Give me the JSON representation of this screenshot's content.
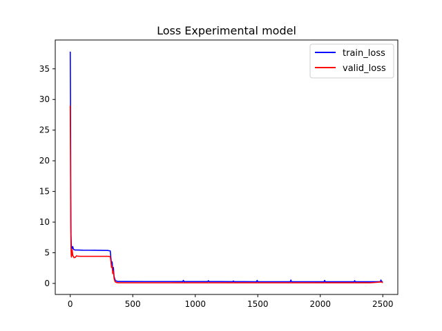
{
  "chart_data": {
    "type": "line",
    "title": "Loss Experimental model",
    "xlabel": "",
    "ylabel": "",
    "xlim": [
      -120,
      2620
    ],
    "ylim": [
      -1.8,
      39.7
    ],
    "x_ticks": [
      0,
      500,
      1000,
      1500,
      2000,
      2500
    ],
    "x_tick_labels": [
      "0",
      "500",
      "1000",
      "1500",
      "2000",
      "2500"
    ],
    "y_ticks": [
      0,
      5,
      10,
      15,
      20,
      25,
      30,
      35
    ],
    "y_tick_labels": [
      "0",
      "5",
      "10",
      "15",
      "20",
      "25",
      "30",
      "35"
    ],
    "grid": false,
    "legend_position": "top-right",
    "series": [
      {
        "name": "train_loss",
        "color": "#0000ff",
        "x": [
          0,
          2,
          4,
          6,
          8,
          10,
          15,
          20,
          25,
          30,
          40,
          60,
          100,
          200,
          300,
          320,
          325,
          330,
          335,
          340,
          345,
          350,
          355,
          360,
          370,
          380,
          400,
          450,
          600,
          800,
          900,
          905,
          910,
          1000,
          1100,
          1105,
          1110,
          1200,
          1300,
          1305,
          1310,
          1400,
          1490,
          1495,
          1500,
          1600,
          1760,
          1765,
          1770,
          1900,
          2030,
          2035,
          2040,
          2200,
          2270,
          2275,
          2280,
          2400,
          2480,
          2485,
          2490,
          2500
        ],
        "y": [
          37.8,
          30.0,
          15.0,
          8.0,
          6.5,
          6.0,
          5.7,
          6.0,
          5.6,
          5.5,
          5.45,
          5.45,
          5.42,
          5.4,
          5.38,
          5.3,
          4.2,
          3.2,
          3.5,
          2.0,
          2.6,
          1.2,
          0.8,
          0.5,
          0.38,
          0.32,
          0.32,
          0.32,
          0.31,
          0.31,
          0.3,
          0.5,
          0.3,
          0.3,
          0.3,
          0.45,
          0.3,
          0.3,
          0.29,
          0.4,
          0.29,
          0.29,
          0.28,
          0.5,
          0.28,
          0.28,
          0.28,
          0.55,
          0.28,
          0.28,
          0.27,
          0.5,
          0.27,
          0.27,
          0.27,
          0.45,
          0.27,
          0.27,
          0.27,
          0.55,
          0.3,
          0.27
        ]
      },
      {
        "name": "valid_loss",
        "color": "#ff0000",
        "x": [
          0,
          2,
          4,
          6,
          8,
          10,
          15,
          20,
          25,
          30,
          40,
          50,
          60,
          80,
          100,
          200,
          300,
          320,
          325,
          330,
          335,
          340,
          345,
          350,
          355,
          360,
          370,
          380,
          400,
          450,
          600,
          800,
          1000,
          1200,
          1400,
          1600,
          1800,
          2000,
          2200,
          2400,
          2490,
          2500
        ],
        "y": [
          29.0,
          20.0,
          9.0,
          6.0,
          4.5,
          4.3,
          5.5,
          4.6,
          4.4,
          4.2,
          4.25,
          4.5,
          4.45,
          4.42,
          4.42,
          4.42,
          4.42,
          4.4,
          3.6,
          2.6,
          2.8,
          1.6,
          2.0,
          0.9,
          0.5,
          0.25,
          0.15,
          0.12,
          0.1,
          0.1,
          0.1,
          0.1,
          0.1,
          0.1,
          0.1,
          0.1,
          0.1,
          0.1,
          0.1,
          0.1,
          0.25,
          0.1
        ]
      }
    ]
  }
}
